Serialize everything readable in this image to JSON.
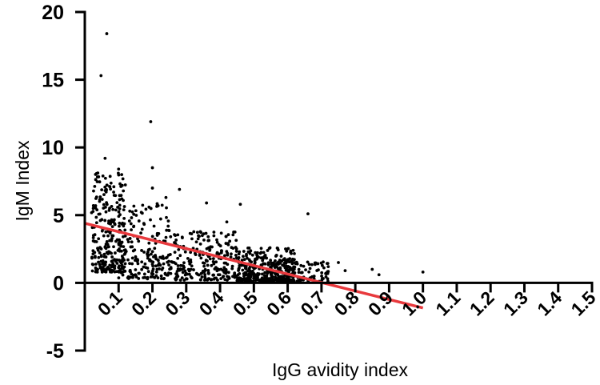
{
  "chart_data": {
    "type": "scatter",
    "title": "",
    "xlabel": "IgG avidity index",
    "ylabel": "IgM Index",
    "xlim": [
      0,
      1.5
    ],
    "ylim": [
      -5,
      20
    ],
    "x_ticks": [
      "0.1",
      "0.2",
      "0.3",
      "0.4",
      "0.5",
      "0.6",
      "0.7",
      "0.8",
      "0.9",
      "1.0",
      "1.1",
      "1.2",
      "1.3",
      "1.4",
      "1.5"
    ],
    "x_tick_values": [
      0.1,
      0.2,
      0.3,
      0.4,
      0.5,
      0.6,
      0.7,
      0.8,
      0.9,
      1.0,
      1.1,
      1.2,
      1.3,
      1.4,
      1.5
    ],
    "y_ticks": [
      "-5",
      "0",
      "5",
      "10",
      "15",
      "20"
    ],
    "y_tick_values": [
      -5,
      0,
      5,
      10,
      15,
      20
    ],
    "regression_line": {
      "x": [
        0,
        1.0
      ],
      "y": [
        4.4,
        -1.85
      ],
      "color": "#e8393d"
    },
    "point_color": "#000000",
    "notable_points": [
      {
        "x": 0.065,
        "y": 18.4
      },
      {
        "x": 0.048,
        "y": 15.3
      },
      {
        "x": 0.195,
        "y": 11.9
      },
      {
        "x": 0.2,
        "y": 8.5
      },
      {
        "x": 0.06,
        "y": 9.2
      },
      {
        "x": 0.1,
        "y": 8.4
      },
      {
        "x": 0.2,
        "y": 7.0
      },
      {
        "x": 0.28,
        "y": 6.9
      },
      {
        "x": 0.36,
        "y": 5.9
      },
      {
        "x": 0.46,
        "y": 5.8
      },
      {
        "x": 0.66,
        "y": 5.1
      },
      {
        "x": 0.24,
        "y": 6.3
      },
      {
        "x": 0.42,
        "y": 4.5
      },
      {
        "x": 0.85,
        "y": 1.0
      },
      {
        "x": 0.87,
        "y": 0.6
      },
      {
        "x": 1.0,
        "y": 0.8
      },
      {
        "x": 0.77,
        "y": 0.9
      },
      {
        "x": 0.75,
        "y": 1.5
      },
      {
        "x": 0.72,
        "y": 1.2
      }
    ],
    "point_clusters": [
      {
        "x_range": [
          0.02,
          0.12
        ],
        "y_range": [
          0.8,
          8.2
        ],
        "count": 260
      },
      {
        "x_range": [
          0.1,
          0.25
        ],
        "y_range": [
          0.3,
          6.0
        ],
        "count": 190
      },
      {
        "x_range": [
          0.25,
          0.45
        ],
        "y_range": [
          0.2,
          3.8
        ],
        "count": 240
      },
      {
        "x_range": [
          0.45,
          0.62
        ],
        "y_range": [
          0.1,
          2.6
        ],
        "count": 340
      },
      {
        "x_range": [
          0.55,
          0.72
        ],
        "y_range": [
          0.1,
          1.6
        ],
        "count": 110
      }
    ]
  }
}
